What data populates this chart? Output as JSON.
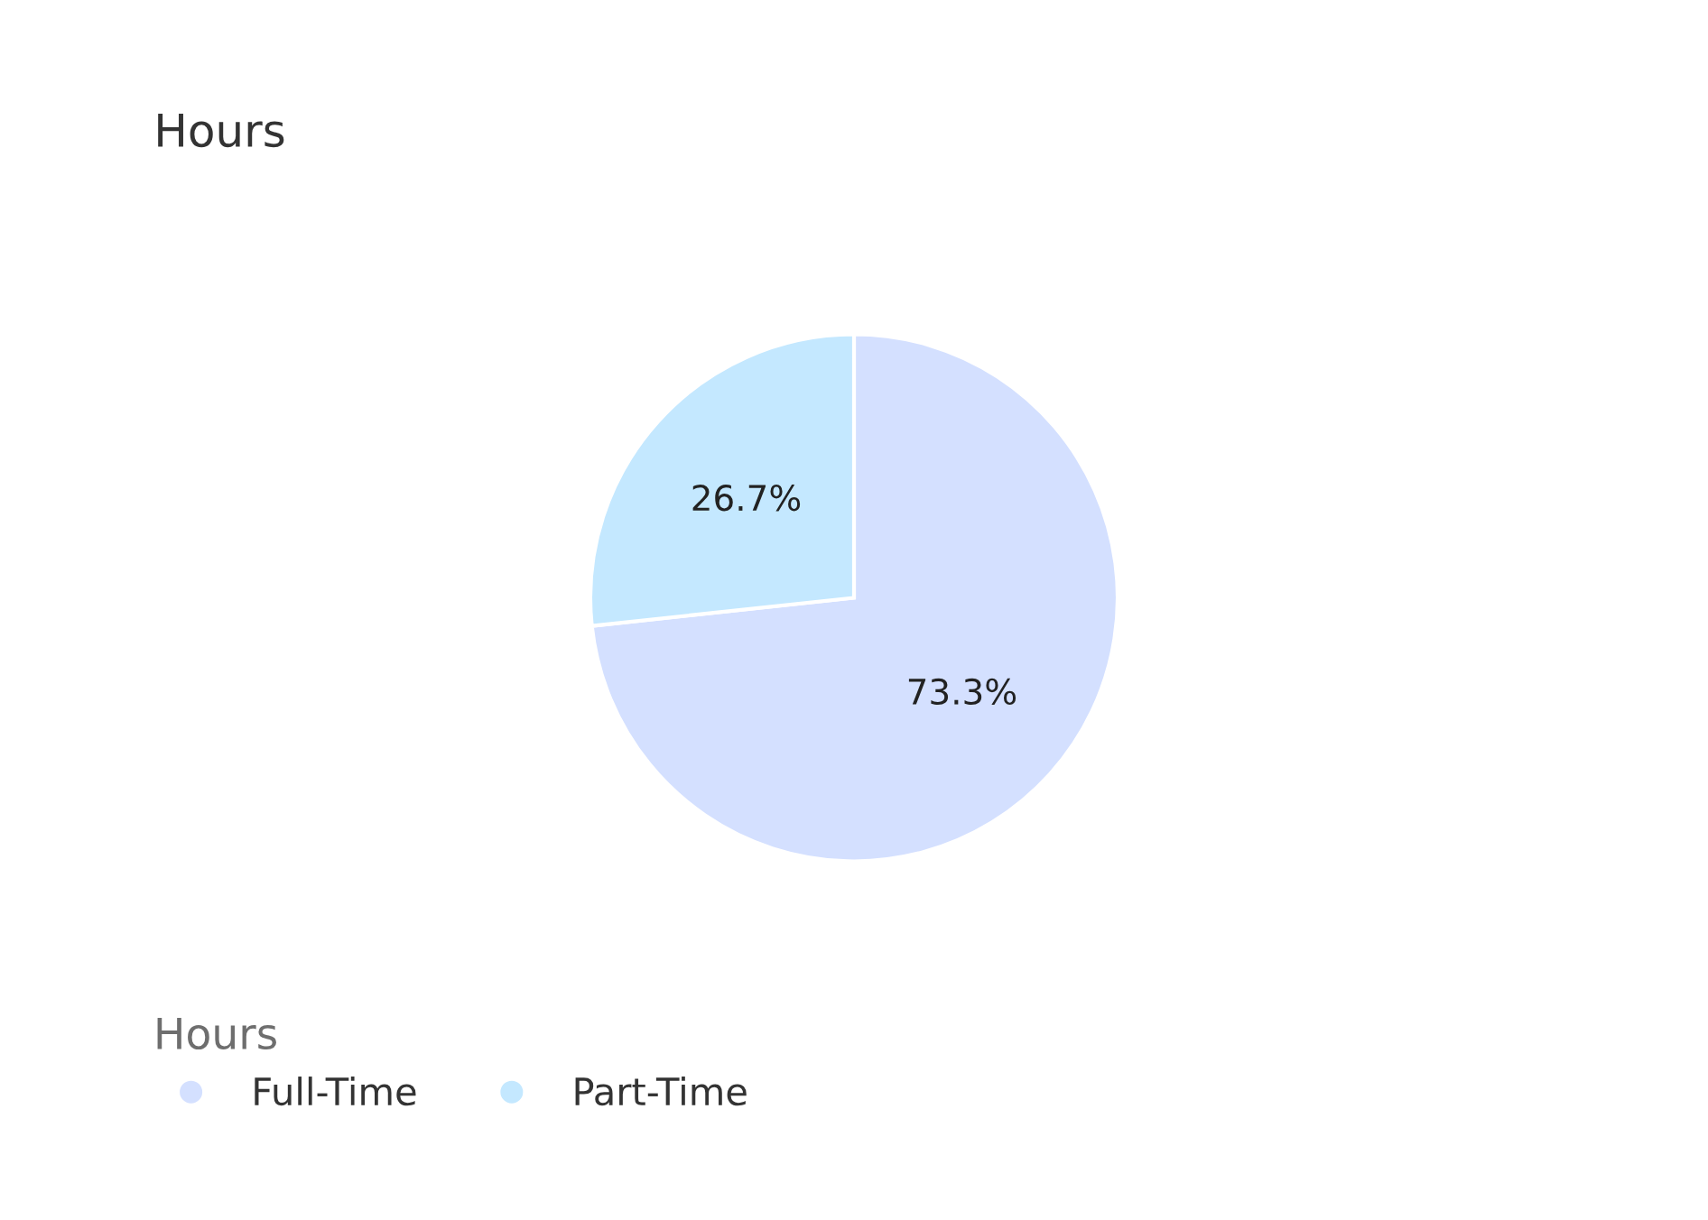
{
  "chart_data": {
    "type": "pie",
    "title": "Hours",
    "legend_title": "Hours",
    "categories": [
      "Full-Time",
      "Part-Time"
    ],
    "values": [
      73.3,
      26.7
    ],
    "colors": [
      "#d4e0ff",
      "#c4e8ff"
    ],
    "value_labels": [
      "73.3%",
      "26.7%"
    ],
    "legend": "bottom left"
  }
}
